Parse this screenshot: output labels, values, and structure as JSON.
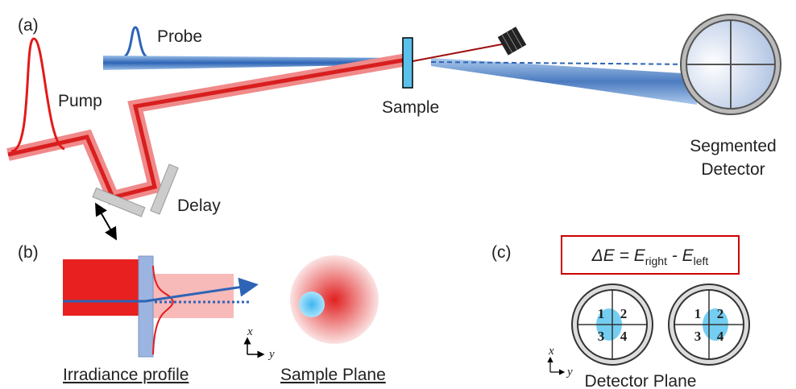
{
  "panel_a": {
    "label": "(a)",
    "probe": "Probe",
    "pump": "Pump",
    "sample": "Sample",
    "detector": [
      "Segmented",
      "Detector"
    ],
    "delay": "Delay"
  },
  "panel_b": {
    "label": "(b)",
    "x_axis": "x",
    "y_axis": "y",
    "irradiance": "Irradiance profile",
    "sample_plane": "Sample Plane"
  },
  "panel_c": {
    "label": "(c)",
    "equation": {
      "lhs": "ΔE = E",
      "sub1": "right",
      "mid": " - E",
      "sub2": "left"
    },
    "quadrants": [
      "1",
      "2",
      "3",
      "4"
    ],
    "x_axis": "x",
    "y_axis": "y",
    "detector_plane": "Detector Plane"
  }
}
